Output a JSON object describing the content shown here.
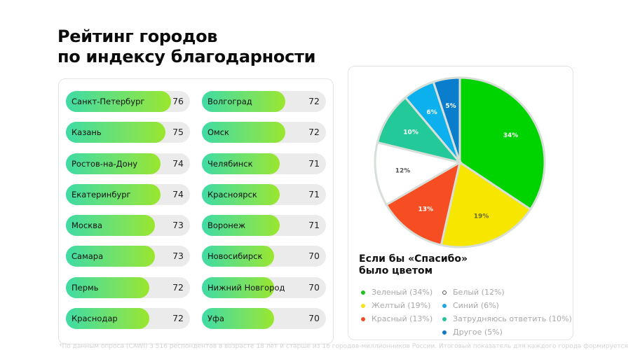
{
  "title": {
    "line1": "Рейтинг городов",
    "line2": "по индексу благодарности"
  },
  "ranking": {
    "column1": [
      {
        "city": "Санкт-Петербург",
        "value": "76"
      },
      {
        "city": "Казань",
        "value": "75"
      },
      {
        "city": "Ростов-на-Дону",
        "value": "74"
      },
      {
        "city": "Екатеринбург",
        "value": "74"
      },
      {
        "city": "Москва",
        "value": "73"
      },
      {
        "city": "Самара",
        "value": "73"
      },
      {
        "city": "Пермь",
        "value": "72"
      },
      {
        "city": "Краснодар",
        "value": "72"
      }
    ],
    "column2": [
      {
        "city": "Волгоград",
        "value": "72"
      },
      {
        "city": "Омск",
        "value": "72"
      },
      {
        "city": "Челябинск",
        "value": "71"
      },
      {
        "city": "Красноярск",
        "value": "71"
      },
      {
        "city": "Воронеж",
        "value": "71"
      },
      {
        "city": "Новосибирск",
        "value": "70"
      },
      {
        "city": "Нижний Новгород",
        "value": "70"
      },
      {
        "city": "Уфа",
        "value": "70"
      }
    ]
  },
  "pie": {
    "title_line1": "Если бы «Спасибо»",
    "title_line2": "было цветом",
    "legend_col1": [
      {
        "label": "Зеленый (34%)",
        "color": "#1ec41e"
      },
      {
        "label": "Желтый (19%)",
        "color": "#f5e21a"
      },
      {
        "label": "Красный (13%)",
        "color": "#f0502a"
      }
    ],
    "legend_col2": [
      {
        "label": "Белый (12%)",
        "color": "#ffffff"
      },
      {
        "label": "Синий (6%)",
        "color": "#1ea8e0"
      },
      {
        "label": "Затрудняюсь ответить (10%)",
        "color": "#26c49a"
      },
      {
        "label": "Другое (5%)",
        "color": "#1279c4"
      }
    ]
  },
  "footnote": "*По данным опроса (CAWI) 3 516 респондентов в возрасте 18 лет и старше из 16 городов-миллионников России. Итоговый показатель для каждого города формируется",
  "chart_data": [
    {
      "type": "bar",
      "title": "Рейтинг городов по индексу благодарности",
      "orientation": "horizontal",
      "categories": [
        "Санкт-Петербург",
        "Казань",
        "Ростов-на-Дону",
        "Екатеринбург",
        "Москва",
        "Самара",
        "Пермь",
        "Краснодар",
        "Волгоград",
        "Омск",
        "Челябинск",
        "Красноярск",
        "Воронеж",
        "Новосибирск",
        "Нижний Новгород",
        "Уфа"
      ],
      "values": [
        76,
        75,
        74,
        74,
        73,
        73,
        72,
        72,
        72,
        72,
        71,
        71,
        71,
        70,
        70,
        70
      ],
      "xlabel": "",
      "ylabel": "",
      "grid": false
    },
    {
      "type": "pie",
      "title": "Если бы «Спасибо» было цветом",
      "categories": [
        "Зеленый",
        "Желтый",
        "Красный",
        "Белый",
        "Затрудняюсь ответить",
        "Синий",
        "Другое"
      ],
      "values": [
        34,
        19,
        13,
        12,
        10,
        6,
        5
      ],
      "colors": [
        "#00d400",
        "#f7e600",
        "#f64e22",
        "#ffffff",
        "#24c99a",
        "#0bb0ec",
        "#0a7dcc"
      ],
      "labels": [
        "34%",
        "19%",
        "13%",
        "12%",
        "10%",
        "6%",
        "5%"
      ],
      "start_angle": "12 o'clock, clockwise",
      "legend_position": "bottom"
    }
  ]
}
